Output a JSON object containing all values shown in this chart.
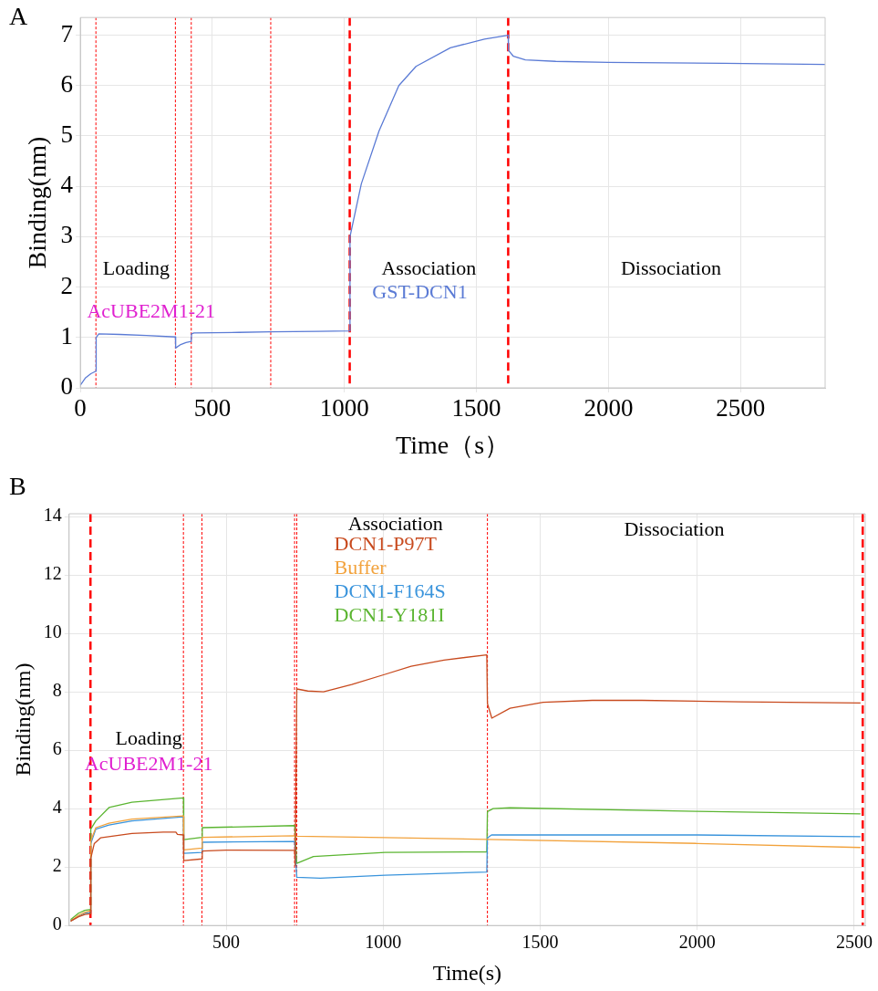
{
  "chart_data": [
    {
      "type": "line",
      "title": "A",
      "xlabel": "Time（s）",
      "ylabel": "Binding(nm)",
      "xlim": [
        0,
        2820
      ],
      "xticks": [
        0,
        500,
        1000,
        1500,
        2000,
        2500
      ],
      "ylim": [
        0,
        7.35
      ],
      "yticks": [
        0,
        1,
        2,
        3,
        4,
        5,
        6,
        7
      ],
      "grid": true,
      "marker": "none",
      "legend": "bottom",
      "series": [
        {
          "name": "GST-DCN1",
          "color": "#5b7bd5",
          "x": [
            0,
            20,
            40,
            59,
            60,
            70,
            150,
            250,
            360,
            361,
            380,
            400,
            420,
            421,
            430,
            600,
            720,
            900,
            1020,
            1021,
            1064,
            1131,
            1206,
            1271,
            1401,
            1530,
            1620,
            1621,
            1640,
            1685,
            1800,
            2000,
            2437,
            2820
          ],
          "values": [
            0.05,
            0.2,
            0.28,
            0.33,
            1.0,
            1.07,
            1.06,
            1.04,
            1.01,
            0.79,
            0.86,
            0.9,
            0.92,
            1.07,
            1.09,
            1.1,
            1.11,
            1.12,
            1.13,
            3.0,
            4.05,
            5.1,
            6.0,
            6.38,
            6.75,
            6.92,
            7.0,
            6.7,
            6.58,
            6.51,
            6.48,
            6.46,
            6.44,
            6.42
          ]
        }
      ],
      "ref_lines": [
        {
          "axis": "x",
          "value": 59,
          "color": "#ff0000",
          "line_style": "dotted"
        },
        {
          "axis": "x",
          "value": 360,
          "color": "#ff0000",
          "line_style": "dotted"
        },
        {
          "axis": "x",
          "value": 420,
          "color": "#ff0000",
          "line_style": "dotted"
        },
        {
          "axis": "x",
          "value": 721,
          "color": "#ff0000",
          "line_style": "dotted"
        },
        {
          "axis": "x",
          "value": 1020,
          "color": "#ff0000",
          "line_style": "dashed"
        },
        {
          "axis": "x",
          "value": 1620,
          "color": "#ff0000",
          "line_style": "dashed"
        }
      ],
      "annotations": [
        "Loading",
        "AcUBE2M1-21",
        "Association",
        "Dissociation"
      ]
    },
    {
      "type": "line",
      "title": "B",
      "xlabel": "Time(s)",
      "ylabel": "Binding(nm)",
      "xlim": [
        0,
        2535
      ],
      "xticks": [
        500,
        1000,
        1500,
        2000,
        2500
      ],
      "ylim": [
        0,
        14.1
      ],
      "yticks": [
        0,
        2,
        4,
        6,
        8,
        10,
        12,
        14
      ],
      "grid": true,
      "marker": "none",
      "legend": "top",
      "series": [
        {
          "name": "DCN1-P97T",
          "color": "#c84a1e",
          "x": [
            5,
            30,
            50,
            68,
            69,
            80,
            100,
            200,
            300,
            340,
            345,
            364,
            365,
            423,
            424,
            500,
            718,
            720,
            725,
            760,
            810,
            900,
            1006,
            1089,
            1194,
            1330,
            1332,
            1346,
            1404,
            1509,
            1666,
            1824,
            2139,
            2520
          ],
          "values": [
            0.15,
            0.3,
            0.38,
            0.4,
            2.3,
            2.8,
            3.0,
            3.15,
            3.2,
            3.2,
            3.12,
            3.1,
            2.22,
            2.28,
            2.55,
            2.58,
            2.57,
            2.05,
            8.1,
            8.03,
            8.0,
            8.25,
            8.6,
            8.88,
            9.09,
            9.27,
            7.6,
            7.1,
            7.44,
            7.64,
            7.71,
            7.71,
            7.66,
            7.62
          ]
        },
        {
          "name": "Buffer",
          "color": "#f2a23c",
          "x": [
            5,
            30,
            50,
            68,
            69,
            85,
            127,
            200,
            364,
            365,
            423,
            424,
            718,
            725,
            1006,
            1330,
            2000,
            2520
          ],
          "values": [
            0.15,
            0.35,
            0.45,
            0.5,
            2.9,
            3.35,
            3.5,
            3.64,
            3.75,
            2.59,
            2.65,
            3.02,
            3.07,
            3.06,
            3.01,
            2.95,
            2.81,
            2.67
          ]
        },
        {
          "name": "DCN1-F164S",
          "color": "#3a94dc",
          "x": [
            5,
            30,
            50,
            68,
            69,
            85,
            127,
            200,
            364,
            365,
            423,
            424,
            718,
            725,
            800,
            1006,
            1330,
            1332,
            1345,
            2000,
            2520
          ],
          "values": [
            0.15,
            0.31,
            0.42,
            0.45,
            2.8,
            3.3,
            3.44,
            3.58,
            3.72,
            2.47,
            2.5,
            2.85,
            2.88,
            1.65,
            1.62,
            1.72,
            1.83,
            3.0,
            3.1,
            3.1,
            3.04
          ]
        },
        {
          "name": "DCN1-Y181I",
          "color": "#5bb531",
          "x": [
            5,
            30,
            50,
            68,
            69,
            85,
            127,
            200,
            364,
            365,
            423,
            424,
            718,
            725,
            778,
            1006,
            1330,
            1332,
            1350,
            1404,
            2000,
            2520
          ],
          "values": [
            0.2,
            0.42,
            0.52,
            0.55,
            3.3,
            3.58,
            4.04,
            4.22,
            4.37,
            2.94,
            3.02,
            3.35,
            3.42,
            2.13,
            2.36,
            2.5,
            2.52,
            3.9,
            4.0,
            4.03,
            3.91,
            3.82
          ]
        }
      ],
      "ref_lines": [
        {
          "axis": "x",
          "value": 68,
          "color": "#ff0000",
          "line_style": "dashed"
        },
        {
          "axis": "x",
          "value": 364,
          "color": "#ff0000",
          "line_style": "dotted"
        },
        {
          "axis": "x",
          "value": 423,
          "color": "#ff0000",
          "line_style": "dotted"
        },
        {
          "axis": "x",
          "value": 718,
          "color": "#ff0000",
          "line_style": "dotted"
        },
        {
          "axis": "x",
          "value": 725,
          "color": "#ff0000",
          "line_style": "dotted"
        },
        {
          "axis": "x",
          "value": 1332,
          "color": "#ff0000",
          "line_style": "dotted"
        },
        {
          "axis": "x",
          "value": 2527,
          "color": "#ff0000",
          "line_style": "dashed"
        }
      ],
      "annotations": [
        "Loading",
        "AcUBE2M1-21",
        "Association",
        "Dissociation"
      ]
    }
  ]
}
